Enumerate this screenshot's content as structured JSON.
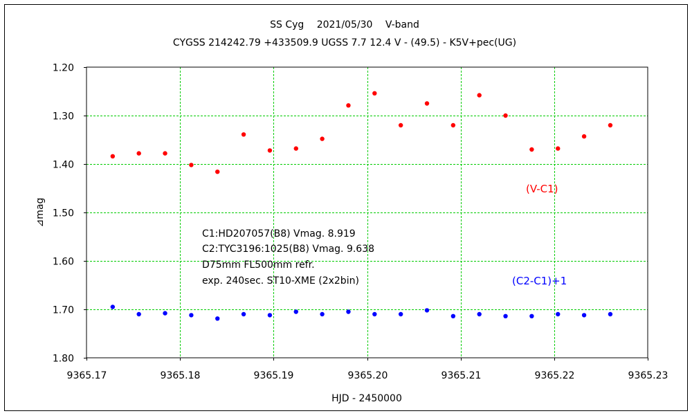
{
  "chart_data": {
    "type": "scatter",
    "title": "SS Cyg　 2021/05/30 　V-band",
    "subtitle": "CYGSS 214242.79 +433509.9 UGSS 7.7 12.4 V - (49.5) - K5V+pec(UG)",
    "xlabel": "HJD - 2450000",
    "ylabel": "⊿mag",
    "xlim": [
      9365.17,
      9365.23
    ],
    "ylim": [
      1.2,
      1.8
    ],
    "y_inverted": true,
    "x_ticks": [
      "9365.17",
      "9365.18",
      "9365.19",
      "9365.20",
      "9365.21",
      "9365.22",
      "9365.23"
    ],
    "y_ticks": [
      "1.20",
      "1.30",
      "1.40",
      "1.50",
      "1.60",
      "1.70",
      "1.80"
    ],
    "grid": true,
    "series": [
      {
        "name": "(V-C1)",
        "color": "#ff0000",
        "x": [
          9365.1728,
          9365.1756,
          9365.1784,
          9365.1812,
          9365.184,
          9365.1868,
          9365.1896,
          9365.1924,
          9365.1952,
          9365.198,
          9365.2008,
          9365.2036,
          9365.2064,
          9365.2092,
          9365.212,
          9365.2148,
          9365.2176,
          9365.2204,
          9365.2232,
          9365.226
        ],
        "y": [
          1.384,
          1.378,
          1.378,
          1.402,
          1.416,
          1.339,
          1.372,
          1.368,
          1.348,
          1.279,
          1.254,
          1.32,
          1.275,
          1.32,
          1.258,
          1.3,
          1.37,
          1.368,
          1.343,
          1.32
        ]
      },
      {
        "name": "(C2-C1)+1",
        "color": "#0000ff",
        "x": [
          9365.1728,
          9365.1756,
          9365.1784,
          9365.1812,
          9365.184,
          9365.1868,
          9365.1896,
          9365.1924,
          9365.1952,
          9365.198,
          9365.2008,
          9365.2036,
          9365.2064,
          9365.2092,
          9365.212,
          9365.2148,
          9365.2176,
          9365.2204,
          9365.2232,
          9365.226
        ],
        "y": [
          1.695,
          1.71,
          1.708,
          1.712,
          1.719,
          1.71,
          1.712,
          1.705,
          1.71,
          1.705,
          1.71,
          1.71,
          1.702,
          1.714,
          1.71,
          1.714,
          1.714,
          1.71,
          1.712,
          1.71
        ]
      }
    ],
    "annotations": [
      "C1:HD207057(B8) Vmag. 8.919",
      "C2:TYC3196:1025(B8) Vmag. 9.638",
      "D75mm  FL500mm  refr.",
      "exp. 240sec.   ST10-XME (2x2bin)"
    ]
  }
}
